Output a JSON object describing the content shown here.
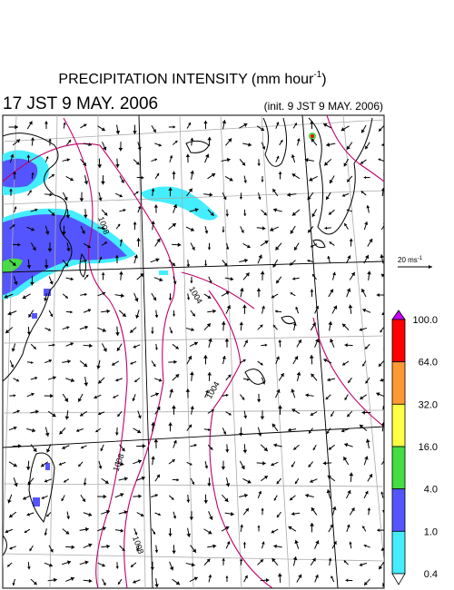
{
  "header": {
    "title": {
      "text": "PRECIPITATION INTENSITY (mm hour",
      "superscript": "-1",
      "suffix": ")"
    },
    "valid_time": "17 JST 9 MAY. 2006",
    "init_time": "(init. 9 JST 9 MAY. 2006)"
  },
  "wind_scale": {
    "text": "20 ms",
    "superscript": "-1"
  },
  "isobar_labels": [
    "1008",
    "1004",
    "1004",
    "1008",
    "1008"
  ],
  "colorbar": {
    "colors": [
      "#cc00ff",
      "#ff0000",
      "#ff9933",
      "#ffff44",
      "#44dd44",
      "#5555ff",
      "#44eeff",
      "#ffffff"
    ],
    "labels": [
      "100.0",
      "64.0",
      "32.0",
      "16.0",
      "4.0",
      "1.0",
      "0.4"
    ]
  }
}
